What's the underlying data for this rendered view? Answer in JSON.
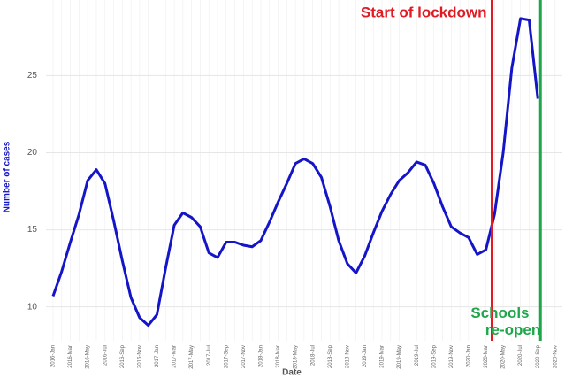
{
  "chart_data": {
    "type": "line",
    "x_label": "Date",
    "y_label": "Number of cases",
    "categories": [
      "2016-Jan",
      null,
      "2016-Mar",
      null,
      "2016-May",
      null,
      "2016-Jul",
      null,
      "2016-Sep",
      null,
      "2016-Nov",
      null,
      "2017-Jan",
      null,
      "2017-Mar",
      null,
      "2017-May",
      null,
      "2017-Jul",
      null,
      "2017-Sep",
      null,
      "2017-Nov",
      null,
      "2018-Jan",
      null,
      "2018-Mar",
      null,
      "2018-May",
      null,
      "2018-Jul",
      null,
      "2018-Sep",
      null,
      "2018-Nov",
      null,
      "2019-Jan",
      null,
      "2019-Mar",
      null,
      "2019-May",
      null,
      "2019-Jul",
      null,
      "2019-Sep",
      null,
      "2019-Nov",
      null,
      "2020-Jan",
      null,
      "2020-Mar",
      null,
      "2020-May",
      null,
      "2020-Jul",
      null,
      "2020-Sep",
      null,
      "2020-Nov"
    ],
    "series": [
      {
        "name": "cases",
        "color": "#1515c8",
        "values": [
          10.7,
          12.3,
          14.2,
          16.0,
          18.2,
          18.9,
          18.0,
          15.6,
          13.0,
          10.6,
          9.3,
          8.8,
          9.5,
          12.5,
          15.3,
          16.1,
          15.8,
          15.2,
          13.5,
          13.2,
          14.2,
          14.2,
          14.0,
          13.9,
          14.3,
          15.5,
          16.8,
          18.0,
          19.3,
          19.6,
          19.3,
          18.4,
          16.5,
          14.3,
          12.8,
          12.2,
          13.3,
          14.8,
          16.2,
          17.3,
          18.2,
          18.7,
          19.4,
          19.2,
          18.0,
          16.5,
          15.2,
          14.8,
          14.5,
          13.4,
          13.7,
          16.0,
          20.0,
          25.5,
          28.7,
          28.6,
          23.5,
          null,
          null
        ]
      }
    ],
    "ylim": [
      7.8,
      29.9
    ],
    "yticks": [
      10,
      15,
      20,
      25
    ],
    "grid": true,
    "annotations": [
      {
        "text": "Start of lockdown",
        "x": "2020-Mar",
        "color": "#e01b24"
      },
      {
        "text": "Schools re-open",
        "x": "2020-Sep",
        "color": "#1fa64a"
      }
    ]
  }
}
